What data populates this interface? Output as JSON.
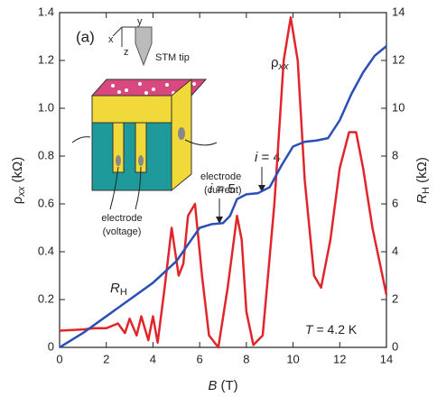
{
  "chart_data": {
    "type": "line",
    "panel_label": "(a)",
    "xlabel": [
      "B",
      " (T)"
    ],
    "ylabel": [
      "ρ",
      "xx",
      " (kΩ)"
    ],
    "y2label": [
      "R",
      "H",
      " (kΩ)"
    ],
    "xlim": [
      0,
      14
    ],
    "xticks": [
      0,
      2,
      4,
      6,
      8,
      10,
      12,
      14
    ],
    "ylim": [
      0,
      1.4
    ],
    "yticks": [
      0,
      0.2,
      0.4,
      0.6,
      0.8,
      {
        "value": 1,
        "label": "1.0"
      },
      1.2,
      1.4
    ],
    "y2lim": [
      0,
      14
    ],
    "y2ticks": [
      0,
      2,
      4,
      6,
      8,
      10,
      12,
      14
    ],
    "series": [
      {
        "label": [
          "ρ",
          "xx"
        ],
        "color": "#e0262b",
        "x": [
          0,
          1,
          1.5,
          2,
          2.5,
          2.8,
          3,
          3.3,
          3.5,
          3.8,
          4,
          4.2,
          4.5,
          4.8,
          5.1,
          5.3,
          5.5,
          5.8,
          6.1,
          6.4,
          6.8,
          7.2,
          7.6,
          7.8,
          8,
          8.3,
          8.7,
          9.2,
          9.6,
          9.9,
          10.2,
          10.5,
          10.9,
          11.2,
          11.6,
          12,
          12.4,
          12.7,
          13,
          13.4,
          14
        ],
        "values": [
          0.07,
          0.075,
          0.08,
          0.08,
          0.1,
          0.06,
          0.12,
          0.05,
          0.13,
          0.03,
          0.13,
          0.02,
          0.25,
          0.5,
          0.3,
          0.35,
          0.55,
          0.6,
          0.3,
          0.05,
          0,
          0.25,
          0.55,
          0.45,
          0.15,
          0.01,
          0.05,
          0.6,
          1.2,
          1.38,
          1.2,
          0.7,
          0.3,
          0.25,
          0.45,
          0.75,
          0.9,
          0.9,
          0.75,
          0.5,
          0.22
        ]
      },
      {
        "label": [
          "R",
          "H"
        ],
        "color": "#2a4fb5",
        "axis": "y2",
        "x": [
          0,
          1,
          2,
          3,
          4,
          5,
          5.5,
          6,
          6.5,
          7,
          7.3,
          7.6,
          8,
          8.5,
          9,
          9.5,
          10,
          10.5,
          11,
          11.5,
          12,
          12.5,
          13,
          13.5,
          14
        ],
        "values": [
          0,
          0.6,
          1.3,
          2,
          2.7,
          3.6,
          4.3,
          5,
          5.15,
          5.2,
          5.5,
          6.2,
          6.4,
          6.45,
          6.7,
          7.6,
          8.4,
          8.6,
          8.65,
          8.75,
          9.5,
          10.6,
          11.5,
          12.2,
          12.6
        ]
      }
    ],
    "annotations": {
      "i5": [
        "i",
        " = 5"
      ],
      "i4": [
        "i",
        " = 4"
      ],
      "temperature": [
        "T",
        " = 4.2 K"
      ],
      "stm_tip": "STM tip",
      "axis_x": "x",
      "axis_y": "y",
      "axis_z": "z",
      "electrode_current": [
        "electrode",
        "(current)"
      ],
      "electrode_voltage": [
        "electrode",
        "(voltage)"
      ]
    }
  }
}
